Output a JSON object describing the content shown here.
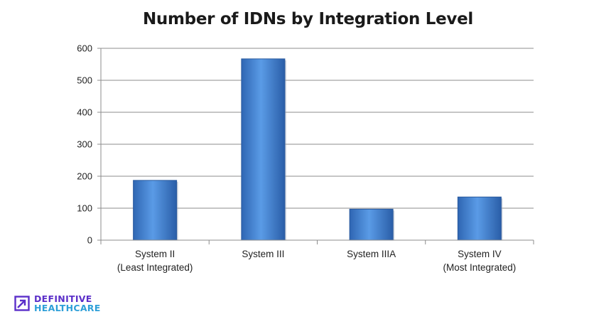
{
  "chart_data": {
    "type": "bar",
    "title": "Number of IDNs by Integration Level",
    "categories": [
      [
        "System II",
        "(Least Integrated)"
      ],
      [
        "System III"
      ],
      [
        "System IIIA"
      ],
      [
        "System IV",
        "(Most Integrated)"
      ]
    ],
    "values": [
      187,
      567,
      97,
      135
    ],
    "ylim": [
      0,
      600
    ],
    "yticks": [
      0,
      100,
      200,
      300,
      400,
      500,
      600
    ],
    "grid": true,
    "bar_color": "#3f7fcf",
    "xlabel": "",
    "ylabel": ""
  },
  "logo": {
    "line1": "DEFINITIVE",
    "line2": "HEALTHCARE",
    "colors": {
      "line1": "#5b2fc9",
      "line2": "#2e9fd8"
    }
  }
}
